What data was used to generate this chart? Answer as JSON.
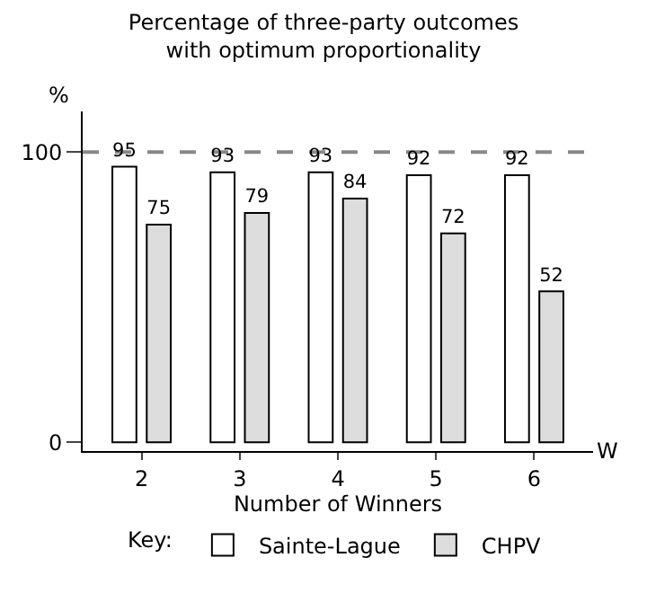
{
  "chart_data": {
    "type": "bar",
    "title": "Percentage of three-party outcomes\nwith optimum proportionality",
    "xlabel": "Number of Winners",
    "ylabel": "%",
    "categories": [
      "2",
      "3",
      "4",
      "5",
      "6"
    ],
    "series": [
      {
        "name": "Sainte-Lague",
        "color": "#ffffff",
        "values": [
          95,
          93,
          93,
          92,
          92
        ]
      },
      {
        "name": "CHPV",
        "color": "#dddddd",
        "values": [
          75,
          79,
          84,
          72,
          52
        ]
      }
    ],
    "ylim": [
      -3,
      114
    ],
    "yticks": [
      0,
      100
    ],
    "grid": false,
    "data_labels": true,
    "legend": "bottom",
    "legend_title": "Key:",
    "ref_lines": [
      {
        "axis": "y",
        "value": 100,
        "color": "#888888",
        "line_style": "dashed"
      }
    ],
    "annotations": [
      "W"
    ]
  }
}
